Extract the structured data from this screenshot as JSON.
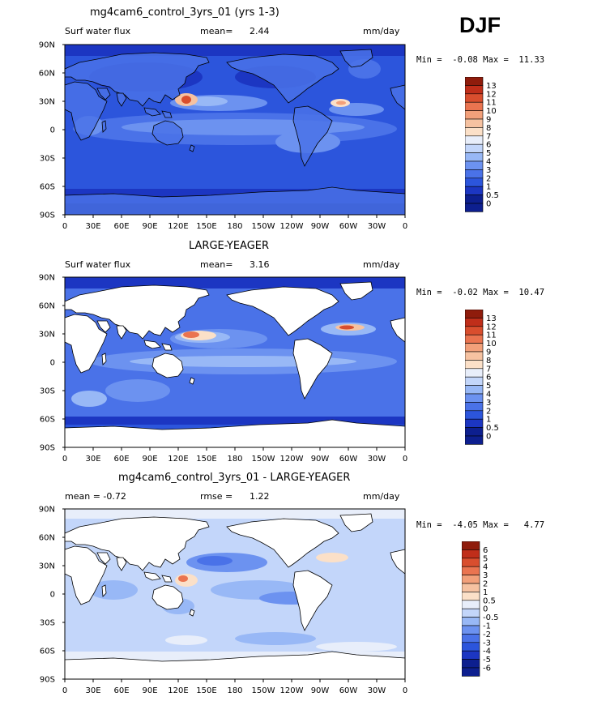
{
  "season_label": "DJF",
  "palette": {
    "11": "#0d1f8f",
    "10": "#1c36c2",
    "9": "#2c55dc",
    "8": "#4a72e8",
    "7": "#6c92f0",
    "6": "#98b8f6",
    "5": "#c3d6fa",
    "4": "#e8eefa",
    "3": "#fbe0c8",
    "2": "#f6c2a1",
    "1": "#f2a07a",
    "0": "#ea7450",
    "-1": "#d94e2e",
    "-2": "#c02e1a",
    "-3": "#8f1c0c"
  },
  "panels": [
    {
      "title": "mg4cam6_control_3yrs_01 (yrs 1-3)",
      "left_label": "Surf water flux",
      "stat_label": "mean=",
      "stat_value": "2.44",
      "units": "mm/day",
      "min_max": "Min =  -0.08 Max =  11.33",
      "colorbar_labels": [
        "13",
        "12",
        "11",
        "10",
        "9",
        "8",
        "7",
        "6",
        "5",
        "4",
        "3",
        "2",
        "1",
        "0.5",
        "0"
      ]
    },
    {
      "title": "LARGE-YEAGER",
      "left_label": "Surf water flux",
      "stat_label": "mean=",
      "stat_value": "3.16",
      "units": "mm/day",
      "min_max": "Min =  -0.02 Max =  10.47",
      "colorbar_labels": [
        "13",
        "12",
        "11",
        "10",
        "9",
        "8",
        "7",
        "6",
        "5",
        "4",
        "3",
        "2",
        "1",
        "0.5",
        "0"
      ]
    },
    {
      "title": "mg4cam6_control_3yrs_01 - LARGE-YEAGER",
      "left_label": "mean =  -0.72",
      "stat_label": "rmse =",
      "stat_value": "1.22",
      "units": "mm/day",
      "min_max": "Min =  -4.05 Max =   4.77",
      "colorbar_labels": [
        "6",
        "5",
        "4",
        "3",
        "2",
        "1",
        "0.5",
        "0",
        "-0.5",
        "-1",
        "-2",
        "-3",
        "-4",
        "-5",
        "-6"
      ]
    }
  ],
  "lat_labels": [
    "90N",
    "60N",
    "30N",
    "0",
    "30S",
    "60S",
    "90S"
  ],
  "lon_labels": [
    "0",
    "30E",
    "60E",
    "90E",
    "120E",
    "150E",
    "180",
    "150W",
    "120W",
    "90W",
    "60W",
    "30W",
    "0"
  ]
}
